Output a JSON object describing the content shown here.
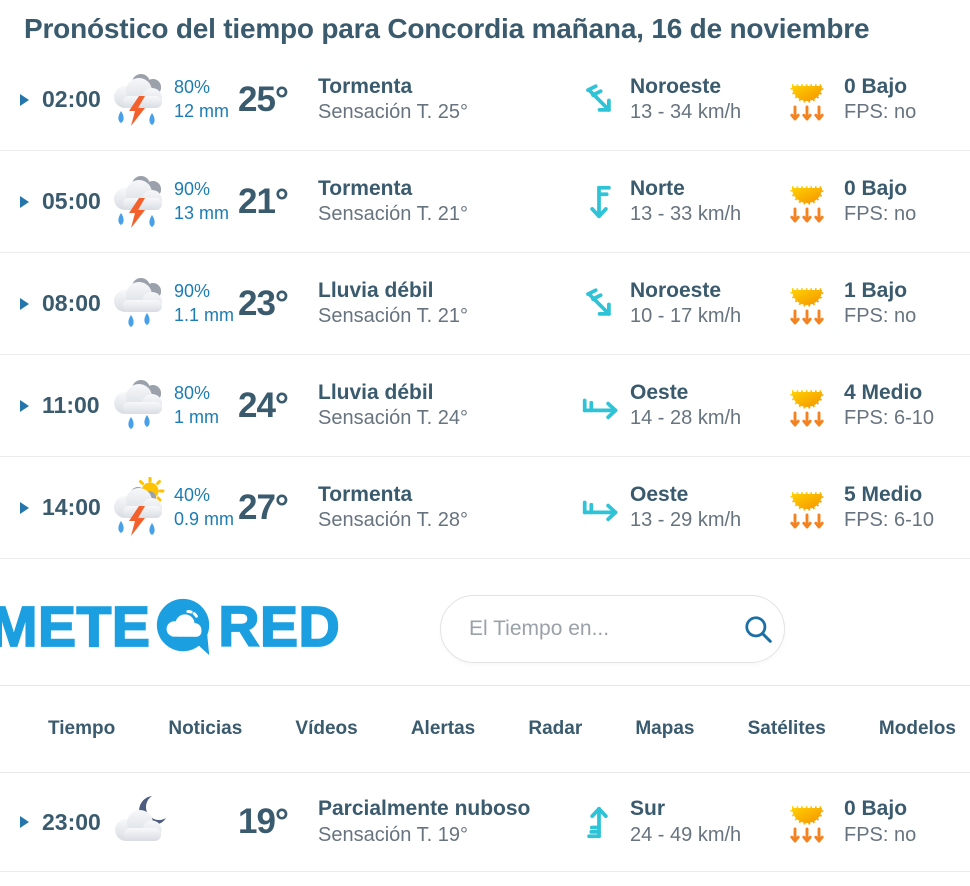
{
  "title": "Pronóstico del tiempo para Concordia mañana, 16 de noviembre",
  "colors": {
    "heading": "#3a5a6e",
    "secondary_text": "#67747f",
    "precip_blue": "#1c7cb4",
    "wind_cyan": "#2fc3d7",
    "uv_orange": "#f58220",
    "logo_blue": "#1b9fe0",
    "divider": "#ececec"
  },
  "forecast_rows": [
    {
      "time": "02:00",
      "icon": "storm-cloud",
      "precip_chance": "80%",
      "precip_amount": "12 mm",
      "temp": "25°",
      "condition": "Tormenta",
      "feels_like": "Sensación T. 25°",
      "wind_icon": "wind-northwest",
      "wind_dir": "Noroeste",
      "wind_speed": "13 - 34 km/h",
      "uv_icon": "uv-sun",
      "uv_index": "0 Bajo",
      "uv_fps": "FPS: no"
    },
    {
      "time": "05:00",
      "icon": "storm-cloud",
      "precip_chance": "90%",
      "precip_amount": "13 mm",
      "temp": "21°",
      "condition": "Tormenta",
      "feels_like": "Sensación T. 21°",
      "wind_icon": "wind-north",
      "wind_dir": "Norte",
      "wind_speed": "13 - 33 km/h",
      "uv_icon": "uv-sun",
      "uv_index": "0 Bajo",
      "uv_fps": "FPS: no"
    },
    {
      "time": "08:00",
      "icon": "rain-cloud",
      "precip_chance": "90%",
      "precip_amount": "1.1 mm",
      "temp": "23°",
      "condition": "Lluvia débil",
      "feels_like": "Sensación T. 21°",
      "wind_icon": "wind-northwest",
      "wind_dir": "Noroeste",
      "wind_speed": "10 - 17 km/h",
      "uv_icon": "uv-sun",
      "uv_index": "1 Bajo",
      "uv_fps": "FPS: no"
    },
    {
      "time": "11:00",
      "icon": "rain-cloud",
      "precip_chance": "80%",
      "precip_amount": "1 mm",
      "temp": "24°",
      "condition": "Lluvia débil",
      "feels_like": "Sensación T. 24°",
      "wind_icon": "wind-west",
      "wind_dir": "Oeste",
      "wind_speed": "14 - 28 km/h",
      "uv_icon": "uv-sun",
      "uv_index": "4 Medio",
      "uv_fps": "FPS: 6-10"
    },
    {
      "time": "14:00",
      "icon": "sun-storm-cloud",
      "precip_chance": "40%",
      "precip_amount": "0.9 mm",
      "temp": "27°",
      "condition": "Tormenta",
      "feels_like": "Sensación T. 28°",
      "wind_icon": "wind-west",
      "wind_dir": "Oeste",
      "wind_speed": "13 - 29 km/h",
      "uv_icon": "uv-sun",
      "uv_index": "5 Medio",
      "uv_fps": "FPS: 6-10"
    }
  ],
  "night_row": {
    "time": "23:00",
    "icon": "moon-cloud",
    "precip_chance": "",
    "precip_amount": "",
    "temp": "19°",
    "condition": "Parcialmente nuboso",
    "feels_like": "Sensación T. 19°",
    "wind_icon": "wind-south",
    "wind_dir": "Sur",
    "wind_speed": "24 - 49 km/h",
    "uv_icon": "uv-sun",
    "uv_index": "0 Bajo",
    "uv_fps": "FPS: no"
  },
  "logo": {
    "text_left": "METE",
    "text_right": "RED",
    "bubble_icon": "cloud-bubble"
  },
  "search": {
    "placeholder": "El Tiempo en...",
    "icon": "search"
  },
  "nav": {
    "items": [
      "Tiempo",
      "Noticias",
      "Vídeos",
      "Alertas",
      "Radar",
      "Mapas",
      "Satélites",
      "Modelos"
    ]
  }
}
